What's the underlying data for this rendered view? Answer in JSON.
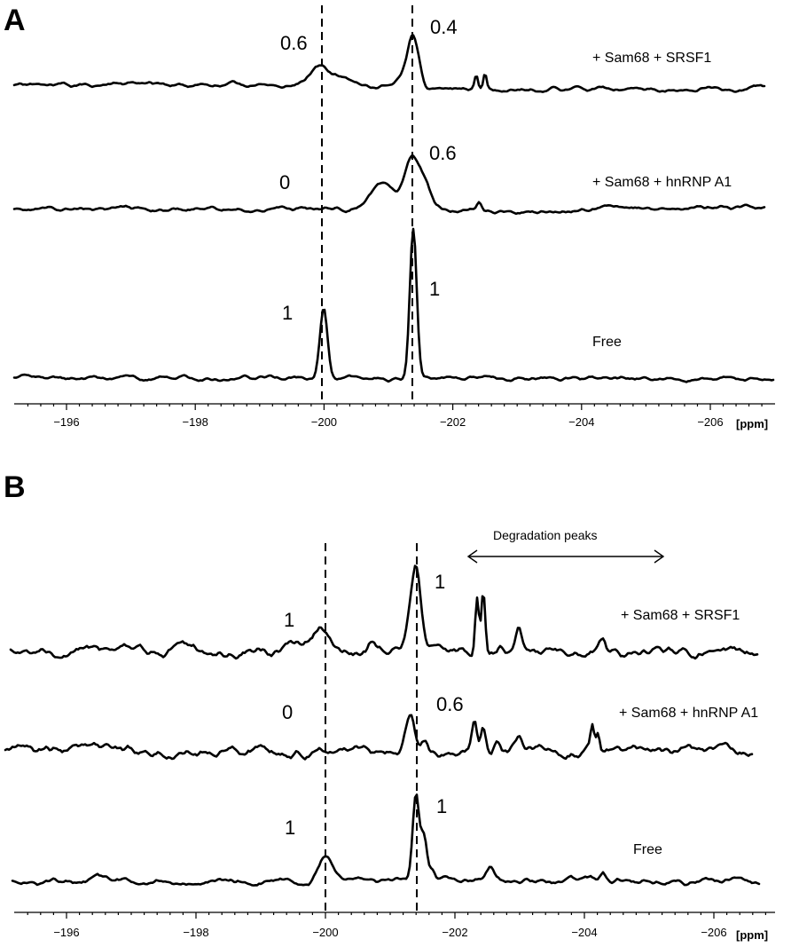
{
  "figure": {
    "panels": [
      {
        "letter": "A",
        "axis_unit": "[ppm]",
        "ticks": [
          "−196",
          "−198",
          "−200",
          "−202",
          "−204",
          "−206"
        ],
        "tick_values": [
          -196,
          -198,
          -200,
          -202,
          -204,
          -206
        ],
        "reference_lines_ppm": [
          -200.1,
          -201.5
        ],
        "traces": [
          {
            "label": "+ Sam68 + SRSF1",
            "peak_left_label": "0.6",
            "peak_right_label": "0.4"
          },
          {
            "label": "+ Sam68 + hnRNP A1",
            "peak_left_label": "0",
            "peak_right_label": "0.6"
          },
          {
            "label": "Free",
            "peak_left_label": "1",
            "peak_right_label": "1"
          }
        ]
      },
      {
        "letter": "B",
        "axis_unit": "[ppm]",
        "ticks": [
          "−196",
          "−198",
          "−200",
          "−202",
          "−204",
          "−206"
        ],
        "tick_values": [
          -196,
          -198,
          -200,
          -202,
          -204,
          -206
        ],
        "reference_lines_ppm": [
          -200.2,
          -201.6
        ],
        "annotation": "Degradation peaks",
        "traces": [
          {
            "label": "+ Sam68 + SRSF1",
            "peak_left_label": "1",
            "peak_right_label": "1"
          },
          {
            "label": "+ Sam68 + hnRNP A1",
            "peak_left_label": "0",
            "peak_right_label": "0.6"
          },
          {
            "label": "Free",
            "peak_left_label": "1",
            "peak_right_label": "1"
          }
        ]
      }
    ]
  }
}
